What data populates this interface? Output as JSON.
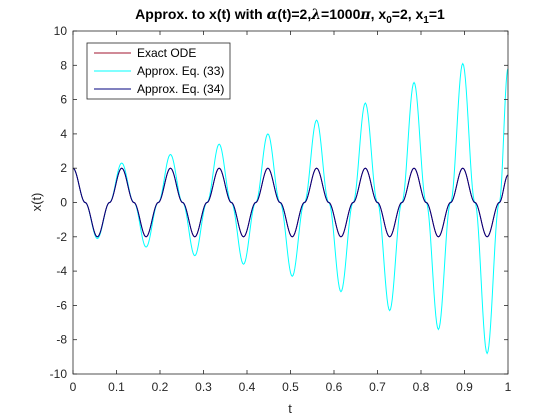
{
  "chart_data": {
    "type": "line",
    "title_parts": {
      "a": "Approx. to x(t) with ",
      "alpha": "α",
      "b": "(t)=2,",
      "lambda": "λ",
      "c": "=1000",
      "pi": "π",
      "d": ", x",
      "sub0": "0",
      "e": "=2, x",
      "sub1": "1",
      "f": "=1"
    },
    "xlabel": "t",
    "ylabel": "x(t)",
    "xlim": [
      0,
      1
    ],
    "ylim": [
      -10,
      10
    ],
    "x_ticks": [
      "0",
      "0.1",
      "0.2",
      "0.3",
      "0.4",
      "0.5",
      "0.6",
      "0.7",
      "0.8",
      "0.9",
      "1"
    ],
    "y_ticks": [
      "10",
      "8",
      "6",
      "4",
      "2",
      "0",
      "-2",
      "-4",
      "-6",
      "-8",
      "-10"
    ],
    "legend_position": "top-left",
    "series": [
      {
        "name": "Exact ODE",
        "color": "#a2142f",
        "x": [
          0,
          0.028,
          0.056,
          0.084,
          0.112,
          0.14,
          0.168,
          0.196,
          0.224,
          0.252,
          0.28,
          0.308,
          0.336,
          0.364,
          0.392,
          0.42,
          0.448,
          0.476,
          0.504,
          0.532,
          0.56,
          0.588,
          0.616,
          0.644,
          0.672,
          0.7,
          0.728,
          0.756,
          0.784,
          0.812,
          0.84,
          0.868,
          0.896,
          0.924,
          0.952,
          0.98,
          1.0
        ],
        "y": [
          2,
          0,
          -2,
          0,
          2,
          0,
          -2,
          0,
          2,
          0,
          -2,
          0,
          2,
          0,
          -2,
          0,
          2,
          0,
          -2,
          0,
          2,
          0,
          -2,
          0,
          2,
          0,
          -2,
          0,
          2,
          0,
          -2,
          0,
          2,
          0,
          -2,
          0,
          1.6
        ]
      },
      {
        "name": "Approx. Eq. (33)",
        "color": "#00ffff",
        "x": [
          0,
          0.028,
          0.056,
          0.084,
          0.112,
          0.14,
          0.168,
          0.196,
          0.224,
          0.252,
          0.28,
          0.308,
          0.336,
          0.364,
          0.392,
          0.42,
          0.448,
          0.476,
          0.504,
          0.532,
          0.56,
          0.588,
          0.616,
          0.644,
          0.672,
          0.7,
          0.728,
          0.756,
          0.784,
          0.812,
          0.84,
          0.868,
          0.896,
          0.924,
          0.952,
          0.98,
          1.0
        ],
        "y": [
          2,
          0,
          -2.1,
          0,
          2.3,
          0,
          -2.6,
          0,
          2.8,
          0,
          -3.1,
          0,
          3.4,
          0,
          -3.6,
          0,
          4.0,
          0,
          -4.3,
          0,
          4.8,
          0,
          -5.2,
          0,
          5.8,
          0,
          -6.3,
          0,
          7.0,
          0,
          -7.4,
          0,
          8.1,
          0,
          -8.8,
          0,
          7.8
        ]
      },
      {
        "name": "Approx. Eq. (34)",
        "color": "#00007f",
        "x": [
          0,
          0.028,
          0.056,
          0.084,
          0.112,
          0.14,
          0.168,
          0.196,
          0.224,
          0.252,
          0.28,
          0.308,
          0.336,
          0.364,
          0.392,
          0.42,
          0.448,
          0.476,
          0.504,
          0.532,
          0.56,
          0.588,
          0.616,
          0.644,
          0.672,
          0.7,
          0.728,
          0.756,
          0.784,
          0.812,
          0.84,
          0.868,
          0.896,
          0.924,
          0.952,
          0.98,
          1.0
        ],
        "y": [
          2,
          0,
          -2,
          0,
          2,
          0,
          -2,
          0,
          2,
          0,
          -2,
          0,
          2,
          0,
          -2,
          0,
          2,
          0,
          -2,
          0,
          2,
          0,
          -2,
          0,
          2,
          0,
          -2,
          0,
          2,
          0,
          -2,
          0,
          2,
          0,
          -2,
          0,
          1.6
        ]
      }
    ]
  }
}
